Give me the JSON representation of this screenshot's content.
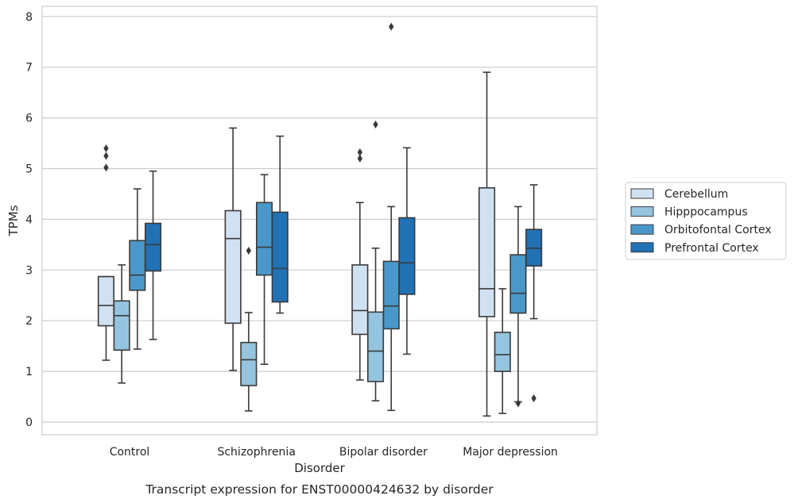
{
  "chart_data": {
    "type": "boxplot",
    "title": "",
    "caption": "Transcript expression for ENST00000424632 by disorder",
    "xlabel": "Disorder",
    "ylabel": "TPMs",
    "ylim": [
      -0.25,
      8.2
    ],
    "yticks": [
      0,
      1,
      2,
      3,
      4,
      5,
      6,
      7,
      8
    ],
    "grid": "horizontal",
    "legend_position": "right",
    "categories": [
      "Control",
      "Schizophrenia",
      "Bipolar disorder",
      "Major depression"
    ],
    "series": [
      {
        "name": "Cerebellum",
        "color": "#d0e1f2",
        "boxes": [
          {
            "whislo": 1.22,
            "q1": 1.9,
            "med": 2.3,
            "q3": 2.87,
            "whishi": 2.87,
            "fliers": [
              5.02,
              5.25,
              5.4
            ]
          },
          {
            "whislo": 1.02,
            "q1": 1.95,
            "med": 3.62,
            "q3": 4.17,
            "whishi": 5.8,
            "fliers": []
          },
          {
            "whislo": 0.83,
            "q1": 1.73,
            "med": 2.2,
            "q3": 3.1,
            "whishi": 4.33,
            "fliers": [
              5.2,
              5.32
            ]
          },
          {
            "whislo": 0.12,
            "q1": 2.08,
            "med": 2.63,
            "q3": 4.62,
            "whishi": 6.9,
            "fliers": []
          }
        ]
      },
      {
        "name": "Hipppocampus",
        "color": "#94c4df",
        "boxes": [
          {
            "whislo": 0.77,
            "q1": 1.42,
            "med": 2.1,
            "q3": 2.39,
            "whishi": 3.1,
            "fliers": []
          },
          {
            "whislo": 0.22,
            "q1": 0.72,
            "med": 1.23,
            "q3": 1.57,
            "whishi": 2.16,
            "fliers": [
              3.38
            ]
          },
          {
            "whislo": 0.42,
            "q1": 0.8,
            "med": 1.4,
            "q3": 2.17,
            "whishi": 3.43,
            "fliers": [
              5.87
            ]
          },
          {
            "whislo": 0.17,
            "q1": 1.0,
            "med": 1.33,
            "q3": 1.77,
            "whishi": 2.63,
            "fliers": []
          }
        ]
      },
      {
        "name": "Orbitofontal Cortex",
        "color": "#4a98c9",
        "boxes": [
          {
            "whislo": 1.44,
            "q1": 2.6,
            "med": 2.9,
            "q3": 3.58,
            "whishi": 4.6,
            "fliers": []
          },
          {
            "whislo": 1.14,
            "q1": 2.9,
            "med": 3.45,
            "q3": 4.33,
            "whishi": 4.88,
            "fliers": []
          },
          {
            "whislo": 0.23,
            "q1": 1.84,
            "med": 2.29,
            "q3": 3.17,
            "whishi": 4.25,
            "fliers": [
              7.8
            ]
          },
          {
            "whislo": 0.4,
            "q1": 2.15,
            "med": 2.54,
            "q3": 3.3,
            "whishi": 4.25,
            "fliers": [
              0.37
            ]
          }
        ]
      },
      {
        "name": "Prefrontal Cortex",
        "color": "#2171b5",
        "boxes": [
          {
            "whislo": 1.63,
            "q1": 2.98,
            "med": 3.5,
            "q3": 3.92,
            "whishi": 4.95,
            "fliers": []
          },
          {
            "whislo": 2.15,
            "q1": 2.37,
            "med": 3.03,
            "q3": 4.14,
            "whishi": 5.64,
            "fliers": []
          },
          {
            "whislo": 1.34,
            "q1": 2.52,
            "med": 3.14,
            "q3": 4.03,
            "whishi": 5.41,
            "fliers": []
          },
          {
            "whislo": 2.04,
            "q1": 3.08,
            "med": 3.43,
            "q3": 3.8,
            "whishi": 4.68,
            "fliers": [
              0.47
            ]
          }
        ]
      }
    ]
  }
}
